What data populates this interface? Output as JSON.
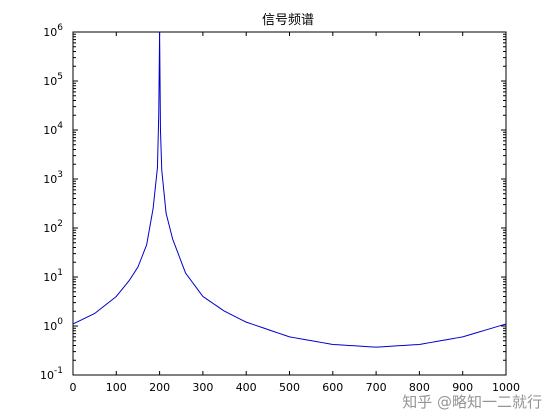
{
  "chart_data": {
    "type": "line",
    "title": "信号频谱",
    "xlabel": "",
    "ylabel": "",
    "xlim": [
      0,
      1000
    ],
    "ylim_log10": [
      -1,
      6
    ],
    "y_scale": "log",
    "grid": false,
    "x_ticks": [
      "0",
      "100",
      "200",
      "300",
      "400",
      "500",
      "600",
      "700",
      "800",
      "900",
      "1000"
    ],
    "y_ticks": [
      {
        "base": "10",
        "exp": "-1"
      },
      {
        "base": "10",
        "exp": "0"
      },
      {
        "base": "10",
        "exp": "1"
      },
      {
        "base": "10",
        "exp": "2"
      },
      {
        "base": "10",
        "exp": "3"
      },
      {
        "base": "10",
        "exp": "4"
      },
      {
        "base": "10",
        "exp": "5"
      },
      {
        "base": "10",
        "exp": "6"
      }
    ],
    "series": [
      {
        "color": "#0000cc",
        "x": [
          0,
          50,
          100,
          130,
          150,
          170,
          185,
          195,
          198,
          200,
          202,
          205,
          215,
          230,
          260,
          300,
          350,
          400,
          500,
          600,
          700,
          800,
          900,
          1000
        ],
        "y": [
          1.1,
          1.8,
          4.0,
          8.5,
          16,
          45,
          250,
          1700,
          20000,
          1000000,
          10000,
          1500,
          200,
          60,
          12,
          4,
          2,
          1.2,
          0.6,
          0.42,
          0.37,
          0.42,
          0.6,
          1.1
        ]
      }
    ]
  },
  "watermark": "知乎 @略知一二就行"
}
